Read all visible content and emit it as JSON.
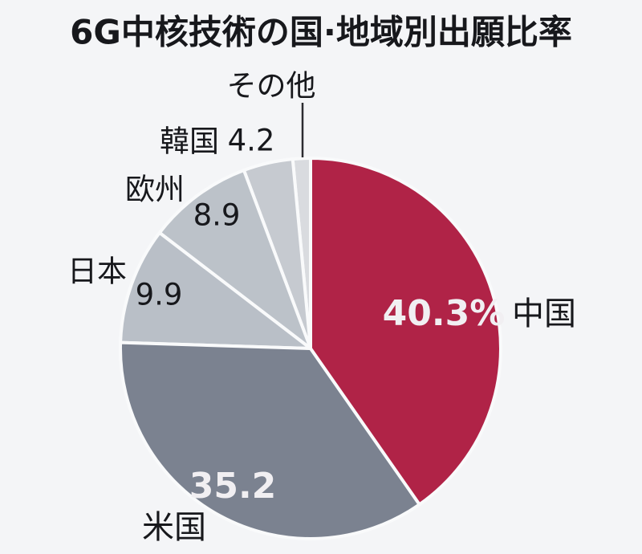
{
  "chart_data": {
    "type": "pie",
    "title": "6G中核技術の国·地域別出願比率",
    "unit": "%",
    "legend_position": "outside-callouts",
    "start_angle_deg": 0,
    "direction": "clockwise",
    "slices": [
      {
        "id": "china",
        "label": "中国",
        "value": 40.3,
        "value_label": "40.3%",
        "color": "#b02347",
        "value_label_position": "inside"
      },
      {
        "id": "usa",
        "label": "米国",
        "value": 35.2,
        "value_label": "35.2",
        "color": "#7b8290",
        "value_label_position": "inside"
      },
      {
        "id": "japan",
        "label": "日本",
        "value": 9.9,
        "value_label": "9.9",
        "color": "#b9bfc7",
        "value_label_position": "outside"
      },
      {
        "id": "europe",
        "label": "欧州",
        "value": 8.9,
        "value_label": "8.9",
        "color": "#bcc2c9",
        "value_label_position": "outside"
      },
      {
        "id": "korea",
        "label": "韓国",
        "value": 4.2,
        "value_label": "4.2",
        "color": "#c6cad0",
        "value_label_position": "outside"
      },
      {
        "id": "others",
        "label": "その他",
        "value": 1.5,
        "value_label": "",
        "color": "#d9dbdf",
        "value_label_position": "none"
      }
    ],
    "colors": {
      "background": "#f4f5f7",
      "text": "#17181c",
      "inside_label_text": "#f1eff2",
      "slice_gap": "#f9fafb"
    }
  }
}
